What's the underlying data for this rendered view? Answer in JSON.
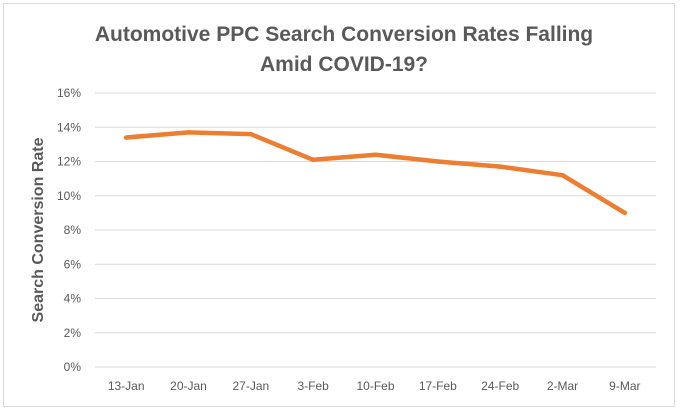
{
  "chart_data": {
    "type": "line",
    "title": "Automotive PPC Search Conversion Rates Falling\nAmid COVID-19?",
    "xlabel": "",
    "ylabel": "Search Conversion Rate",
    "categories": [
      "13-Jan",
      "20-Jan",
      "27-Jan",
      "3-Feb",
      "10-Feb",
      "17-Feb",
      "24-Feb",
      "2-Mar",
      "9-Mar"
    ],
    "series": [
      {
        "values": [
          13.4,
          13.7,
          13.6,
          12.1,
          12.4,
          12.0,
          11.7,
          11.2,
          9.0
        ],
        "color": "#ed7d31"
      }
    ],
    "ylim": [
      0,
      16
    ],
    "yticks": [
      "0%",
      "2%",
      "4%",
      "6%",
      "8%",
      "10%",
      "12%",
      "14%",
      "16%"
    ],
    "grid": true,
    "legend": "none"
  }
}
